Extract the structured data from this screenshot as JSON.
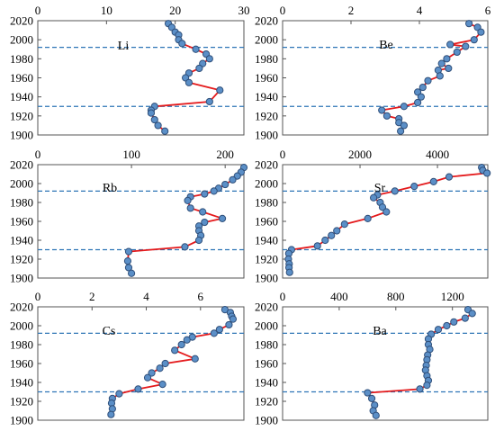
{
  "chart_data": [
    {
      "type": "line",
      "title": "Li",
      "xticks": [
        "0",
        "10",
        "20",
        "30"
      ],
      "xlim": [
        0,
        30
      ],
      "yticks": [
        "1900",
        "1920",
        "1940",
        "1960",
        "1980",
        "2000",
        "2020"
      ],
      "ylim": [
        1900,
        2020
      ],
      "reference_years": [
        1992,
        1930
      ],
      "x": [
        19,
        19.5,
        20,
        20.5,
        20.5,
        21,
        23,
        24.5,
        25,
        24,
        23.5,
        22,
        21.5,
        22,
        26.5,
        25,
        17,
        16.5,
        16.5,
        17,
        17.5,
        18.5
      ],
      "y": [
        2017,
        2013,
        2008,
        2005,
        2000,
        1996,
        1990,
        1985,
        1980,
        1975,
        1970,
        1965,
        1960,
        1955,
        1947,
        1935,
        1930,
        1926,
        1923,
        1916,
        1910,
        1904
      ]
    },
    {
      "type": "line",
      "title": "Be",
      "xticks": [
        "0",
        "2",
        "4",
        "6"
      ],
      "xlim": [
        0,
        6
      ],
      "yticks": [
        "1900",
        "1920",
        "1940",
        "1960",
        "1980",
        "2000",
        "2020"
      ],
      "ylim": [
        1900,
        2020
      ],
      "reference_years": [
        1992,
        1930
      ],
      "x": [
        5.45,
        5.7,
        5.8,
        5.6,
        4.9,
        5.35,
        5.1,
        4.8,
        4.65,
        4.85,
        4.55,
        4.6,
        4.25,
        4.1,
        3.95,
        4.05,
        3.95,
        3.55,
        2.9,
        3.05,
        3.4,
        3.4,
        3.55,
        3.45
      ],
      "y": [
        2017,
        2013,
        2008,
        2000,
        1995,
        1993,
        1987,
        1980,
        1975,
        1970,
        1968,
        1962,
        1957,
        1950,
        1945,
        1940,
        1934,
        1930,
        1926,
        1920,
        1917,
        1913,
        1910,
        1904
      ]
    },
    {
      "type": "line",
      "title": "Rb",
      "xticks": [
        "0",
        "100",
        "200"
      ],
      "xlim": [
        0,
        220
      ],
      "yticks": [
        "1900",
        "1920",
        "1940",
        "1960",
        "1980",
        "2000",
        "2020"
      ],
      "ylim": [
        1900,
        2020
      ],
      "reference_years": [
        1992,
        1930
      ],
      "x": [
        220,
        217,
        213,
        208,
        200,
        193,
        188,
        178,
        163,
        160,
        163,
        176,
        197,
        178,
        172,
        172,
        174,
        172,
        157,
        97,
        96,
        97,
        100
      ],
      "y": [
        2017,
        2012,
        2008,
        2004,
        1999,
        1995,
        1992,
        1989,
        1986,
        1982,
        1974,
        1970,
        1963,
        1959,
        1955,
        1950,
        1945,
        1940,
        1933,
        1928,
        1918,
        1911,
        1905
      ]
    },
    {
      "type": "line",
      "title": "Sr",
      "xticks": [
        "0",
        "2000",
        "4000"
      ],
      "xlim": [
        0,
        5300
      ],
      "yticks": [
        "1900",
        "1920",
        "1940",
        "1960",
        "1980",
        "2000",
        "2020"
      ],
      "ylim": [
        1900,
        2020
      ],
      "reference_years": [
        1992,
        1930
      ],
      "x": [
        5140,
        5170,
        5280,
        4300,
        3900,
        3400,
        2900,
        2450,
        2350,
        2520,
        2580,
        2680,
        2200,
        1600,
        1400,
        1260,
        1100,
        900,
        230,
        160,
        150,
        170,
        165,
        180
      ],
      "y": [
        2017,
        2014,
        2011,
        2007,
        2002,
        1997,
        1992,
        1988,
        1985,
        1980,
        1975,
        1970,
        1963,
        1957,
        1950,
        1945,
        1940,
        1934,
        1930,
        1926,
        1920,
        1915,
        1911,
        1906
      ]
    },
    {
      "type": "line",
      "title": "Cs",
      "xticks": [
        "0",
        "2",
        "4",
        "6"
      ],
      "xlim": [
        0,
        7.6
      ],
      "yticks": [
        "1900",
        "1920",
        "1940",
        "1960",
        "1980",
        "2000",
        "2020"
      ],
      "ylim": [
        1900,
        2020
      ],
      "reference_years": [
        1992,
        1930
      ],
      "x": [
        6.9,
        7.1,
        7.15,
        7.2,
        7.05,
        6.7,
        6.5,
        5.7,
        5.5,
        5.3,
        5.05,
        5.8,
        4.7,
        4.5,
        4.2,
        4.05,
        4.6,
        3.7,
        3.0,
        2.75,
        2.72,
        2.75,
        2.7
      ],
      "y": [
        2017,
        2014,
        2010,
        2007,
        2001,
        1996,
        1992,
        1988,
        1985,
        1980,
        1974,
        1965,
        1960,
        1955,
        1950,
        1945,
        1938,
        1933,
        1928,
        1923,
        1918,
        1912,
        1906
      ]
    },
    {
      "type": "line",
      "title": "Ba",
      "xticks": [
        "0",
        "400",
        "800",
        "1200"
      ],
      "xlim": [
        0,
        1450
      ],
      "yticks": [
        "1900",
        "1920",
        "1940",
        "1960",
        "1980",
        "2000",
        "2020"
      ],
      "ylim": [
        1900,
        2020
      ],
      "reference_years": [
        1992,
        1930
      ],
      "x": [
        1310,
        1340,
        1290,
        1210,
        1160,
        1100,
        1050,
        1030,
        1030,
        1040,
        1025,
        1020,
        1015,
        1010,
        1020,
        1030,
        1020,
        970,
        600,
        630,
        650,
        640,
        660
      ],
      "y": [
        2017,
        2013,
        2008,
        2004,
        2000,
        1996,
        1991,
        1986,
        1980,
        1975,
        1969,
        1964,
        1958,
        1953,
        1947,
        1942,
        1937,
        1933,
        1929,
        1923,
        1916,
        1910,
        1905
      ]
    }
  ]
}
